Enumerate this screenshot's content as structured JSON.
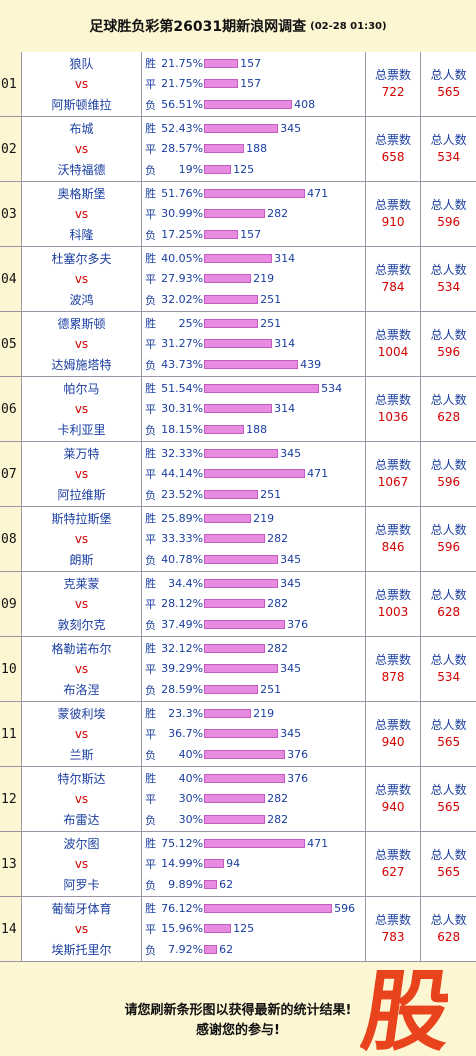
{
  "header": {
    "title": "足球胜负彩第26031期新浪网调查",
    "timestamp": "(02-28 01:30)"
  },
  "labels": {
    "vs": "vs",
    "total_votes": "总票数",
    "total_people": "总人数"
  },
  "matches": [
    {
      "num": "01",
      "home": "狼队",
      "away": "阿斯顿维拉",
      "outcomes": [
        {
          "k": "胜",
          "p": "21.75%",
          "v": 157
        },
        {
          "k": "平",
          "p": "21.75%",
          "v": 157
        },
        {
          "k": "负",
          "p": "56.51%",
          "v": 408
        }
      ],
      "votes": "722",
      "people": "565"
    },
    {
      "num": "02",
      "home": "布城",
      "away": "沃特福德",
      "outcomes": [
        {
          "k": "胜",
          "p": "52.43%",
          "v": 345
        },
        {
          "k": "平",
          "p": "28.57%",
          "v": 188
        },
        {
          "k": "负",
          "p": "19%",
          "v": 125
        }
      ],
      "votes": "658",
      "people": "534"
    },
    {
      "num": "03",
      "home": "奥格斯堡",
      "away": "科隆",
      "outcomes": [
        {
          "k": "胜",
          "p": "51.76%",
          "v": 471
        },
        {
          "k": "平",
          "p": "30.99%",
          "v": 282
        },
        {
          "k": "负",
          "p": "17.25%",
          "v": 157
        }
      ],
      "votes": "910",
      "people": "596"
    },
    {
      "num": "04",
      "home": "杜塞尔多夫",
      "away": "波鸿",
      "outcomes": [
        {
          "k": "胜",
          "p": "40.05%",
          "v": 314
        },
        {
          "k": "平",
          "p": "27.93%",
          "v": 219
        },
        {
          "k": "负",
          "p": "32.02%",
          "v": 251
        }
      ],
      "votes": "784",
      "people": "534"
    },
    {
      "num": "05",
      "home": "德累斯顿",
      "away": "达姆施塔特",
      "outcomes": [
        {
          "k": "胜",
          "p": "25%",
          "v": 251
        },
        {
          "k": "平",
          "p": "31.27%",
          "v": 314
        },
        {
          "k": "负",
          "p": "43.73%",
          "v": 439
        }
      ],
      "votes": "1004",
      "people": "596"
    },
    {
      "num": "06",
      "home": "帕尔马",
      "away": "卡利亚里",
      "outcomes": [
        {
          "k": "胜",
          "p": "51.54%",
          "v": 534
        },
        {
          "k": "平",
          "p": "30.31%",
          "v": 314
        },
        {
          "k": "负",
          "p": "18.15%",
          "v": 188
        }
      ],
      "votes": "1036",
      "people": "628"
    },
    {
      "num": "07",
      "home": "莱万特",
      "away": "阿拉维斯",
      "outcomes": [
        {
          "k": "胜",
          "p": "32.33%",
          "v": 345
        },
        {
          "k": "平",
          "p": "44.14%",
          "v": 471
        },
        {
          "k": "负",
          "p": "23.52%",
          "v": 251
        }
      ],
      "votes": "1067",
      "people": "596"
    },
    {
      "num": "08",
      "home": "斯特拉斯堡",
      "away": "朗斯",
      "outcomes": [
        {
          "k": "胜",
          "p": "25.89%",
          "v": 219
        },
        {
          "k": "平",
          "p": "33.33%",
          "v": 282
        },
        {
          "k": "负",
          "p": "40.78%",
          "v": 345
        }
      ],
      "votes": "846",
      "people": "596"
    },
    {
      "num": "09",
      "home": "克莱蒙",
      "away": "敦刻尔克",
      "outcomes": [
        {
          "k": "胜",
          "p": "34.4%",
          "v": 345
        },
        {
          "k": "平",
          "p": "28.12%",
          "v": 282
        },
        {
          "k": "负",
          "p": "37.49%",
          "v": 376
        }
      ],
      "votes": "1003",
      "people": "628"
    },
    {
      "num": "10",
      "home": "格勒诺布尔",
      "away": "布洛涅",
      "outcomes": [
        {
          "k": "胜",
          "p": "32.12%",
          "v": 282
        },
        {
          "k": "平",
          "p": "39.29%",
          "v": 345
        },
        {
          "k": "负",
          "p": "28.59%",
          "v": 251
        }
      ],
      "votes": "878",
      "people": "534"
    },
    {
      "num": "11",
      "home": "蒙彼利埃",
      "away": "兰斯",
      "outcomes": [
        {
          "k": "胜",
          "p": "23.3%",
          "v": 219
        },
        {
          "k": "平",
          "p": "36.7%",
          "v": 345
        },
        {
          "k": "负",
          "p": "40%",
          "v": 376
        }
      ],
      "votes": "940",
      "people": "565"
    },
    {
      "num": "12",
      "home": "特尔斯达",
      "away": "布雷达",
      "outcomes": [
        {
          "k": "胜",
          "p": "40%",
          "v": 376
        },
        {
          "k": "平",
          "p": "30%",
          "v": 282
        },
        {
          "k": "负",
          "p": "30%",
          "v": 282
        }
      ],
      "votes": "940",
      "people": "565"
    },
    {
      "num": "13",
      "home": "波尔图",
      "away": "阿罗卡",
      "outcomes": [
        {
          "k": "胜",
          "p": "75.12%",
          "v": 471
        },
        {
          "k": "平",
          "p": "14.99%",
          "v": 94
        },
        {
          "k": "负",
          "p": "9.89%",
          "v": 62
        }
      ],
      "votes": "627",
      "people": "565"
    },
    {
      "num": "14",
      "home": "葡萄牙体育",
      "away": "埃斯托里尔",
      "outcomes": [
        {
          "k": "胜",
          "p": "76.12%",
          "v": 596
        },
        {
          "k": "平",
          "p": "15.96%",
          "v": 125
        },
        {
          "k": "负",
          "p": "7.92%",
          "v": 62
        }
      ],
      "votes": "783",
      "people": "628"
    }
  ],
  "footer": {
    "line1": "请您刷新条形图以获得最新的统计结果!",
    "line2": "感谢您的参与!"
  },
  "colors": {
    "team": "#1a3ea0",
    "vs": "#d40000",
    "bar": "#e07ad8",
    "count": "#d40000",
    "logo": "#e8431c"
  },
  "logo": {
    "icon": "gu-stock-logo-icon",
    "text": "股"
  }
}
